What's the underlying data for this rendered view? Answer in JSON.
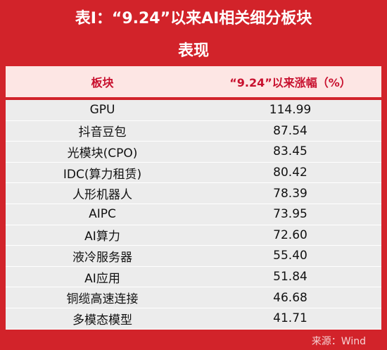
{
  "header": {
    "title": [
      "表Ⅰ：“9.24”以来AI相关细分板块",
      "表现"
    ]
  },
  "table": {
    "columns": [
      "板块",
      "“9.24”以来涨幅（%）"
    ],
    "rows": [
      [
        "GPU",
        "114.99"
      ],
      [
        "抖音豆包",
        "87.54"
      ],
      [
        "光模块(CPO)",
        "83.45"
      ],
      [
        "IDC(算力租赁)",
        "80.42"
      ],
      [
        "人形机器人",
        "78.39"
      ],
      [
        "AIPC",
        "73.95"
      ],
      [
        "AI算力",
        "72.60"
      ],
      [
        "液冷服务器",
        "55.40"
      ],
      [
        "AI应用",
        "51.84"
      ],
      [
        "铜缆高速连接",
        "46.68"
      ],
      [
        "多模态模型",
        "41.71"
      ]
    ]
  },
  "footer": {
    "source": "来源：Wind"
  }
}
